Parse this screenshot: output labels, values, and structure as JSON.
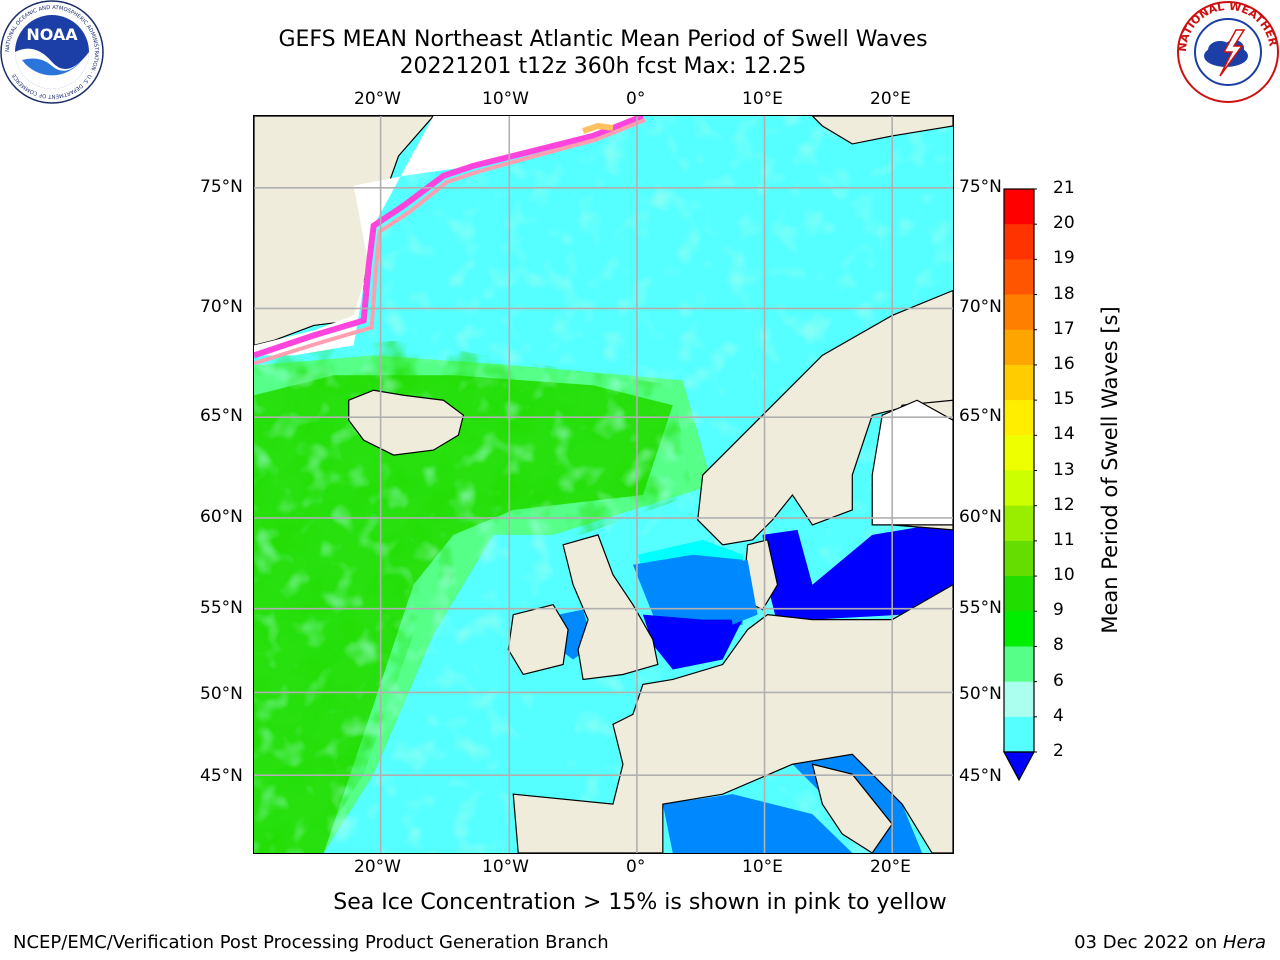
{
  "header": {
    "title_line1": "GEFS MEAN Northeast Atlantic Mean Period of Swell Waves",
    "title_line2": "20221201 t12z 360h fcst   Max: 12.25"
  },
  "logos": {
    "noaa_text": "NOAA",
    "noaa_ring_text": "NATIONAL OCEANIC AND ATMOSPHERIC ADMINISTRATION · U.S. DEPARTMENT OF COMMERCE",
    "nws_ring_text": "NATIONAL WEATHER SERVICE"
  },
  "map": {
    "lon_labels": [
      "20°W",
      "10°W",
      "0°",
      "10°E",
      "20°E"
    ],
    "lat_labels": [
      "75°N",
      "70°N",
      "65°N",
      "60°N",
      "55°N",
      "50°N",
      "45°N"
    ],
    "colors": {
      "land": "#efecdc",
      "ice_pink": "#ff44dd",
      "ice_yellow": "#ffc060",
      "ice_orange": "#ff9fb0",
      "grid": "#b0b0b0"
    }
  },
  "colorbar": {
    "label": "Mean Period of Swell Waves [s]",
    "levels": [
      "21",
      "20",
      "19",
      "18",
      "17",
      "16",
      "15",
      "14",
      "13",
      "12",
      "11",
      "10",
      "9",
      "8",
      "6",
      "4",
      "2"
    ],
    "colors": [
      "#ff0000",
      "#ff3300",
      "#ff5500",
      "#ff7f00",
      "#ffa500",
      "#ffcc00",
      "#ffee00",
      "#eeff00",
      "#ccff00",
      "#99ee00",
      "#66dd00",
      "#22dd00",
      "#00ee00",
      "#55ff88",
      "#aaffee",
      "#55ffff",
      "#00ffff",
      "#0088ff",
      "#0000ff"
    ]
  },
  "footer": {
    "note": "Sea Ice Concentration > 15% is shown in pink to yellow",
    "credit": "NCEP/EMC/Verification Post Processing Product Generation Branch",
    "date": "03 Dec 2022 on ",
    "machine": "Hera"
  }
}
